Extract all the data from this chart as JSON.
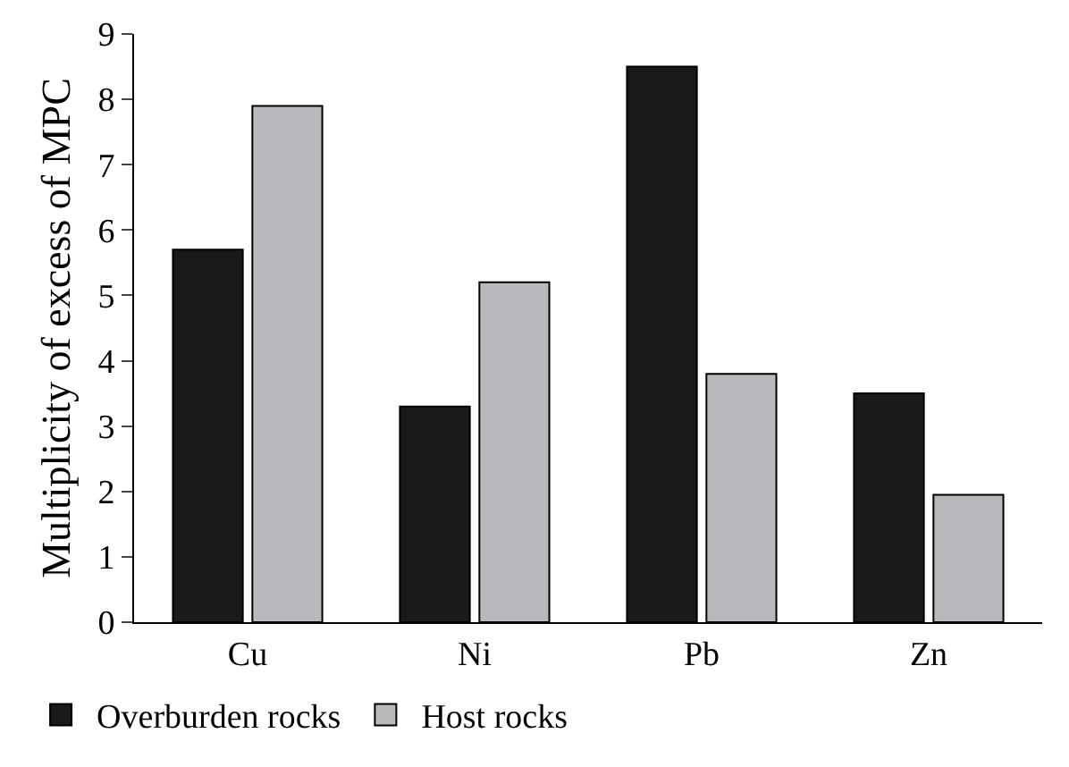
{
  "chart_data": {
    "type": "bar",
    "ylabel": "Multiplicity of excess of MPC",
    "categories": [
      "Cu",
      "Ni",
      "Pb",
      "Zn"
    ],
    "series": [
      {
        "name": "Overburden rocks",
        "color": "#1a1a1a",
        "values": [
          5.7,
          3.3,
          8.5,
          3.5
        ]
      },
      {
        "name": "Host rocks",
        "color": "#b8b9bd",
        "values": [
          7.9,
          5.2,
          3.8,
          1.95
        ]
      }
    ],
    "ylim": [
      0,
      9
    ],
    "yticks": [
      0,
      1,
      2,
      3,
      4,
      5,
      6,
      7,
      8,
      9
    ],
    "grid": false,
    "legend": "bottom left"
  }
}
